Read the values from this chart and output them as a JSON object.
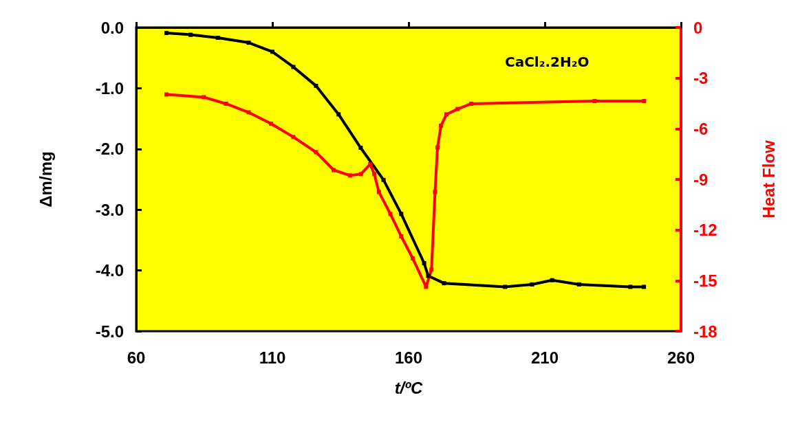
{
  "chart_data": {
    "type": "line",
    "xlabel": "t/ºC",
    "ylabel": "Δm/mg",
    "y2label": "Heat Flow",
    "annotations": [
      "CaCl₂.2H₂O"
    ],
    "xlim": [
      60,
      260
    ],
    "xticks": [
      60,
      110,
      160,
      210,
      260
    ],
    "ylim": [
      -5,
      0
    ],
    "yticks": [
      {
        "value": -5,
        "label": "-5.0"
      },
      {
        "value": -4,
        "label": "-4.0"
      },
      {
        "value": -3,
        "label": "-3.0"
      },
      {
        "value": -2,
        "label": "-2.0"
      },
      {
        "value": -1,
        "label": "-1.0"
      },
      {
        "value": 0,
        "label": "0.0"
      }
    ],
    "y2lim": [
      -18,
      0
    ],
    "y2ticks": [
      -18,
      -15,
      -12,
      -9,
      -6,
      -3,
      0
    ],
    "grid": false,
    "marker": "square",
    "line_style": "solid",
    "series": [
      {
        "color": "#000000",
        "x": [
          71.1,
          80,
          90,
          101.3,
          110,
          117.7,
          126,
          134.3,
          142.4,
          150.8,
          157.3,
          165.7,
          167.2,
          173,
          195.4,
          205.3,
          212.7,
          222.6,
          241.4,
          246.4
        ],
        "values": [
          -0.09,
          -0.12,
          -0.17,
          -0.25,
          -0.4,
          -0.65,
          -0.96,
          -1.43,
          -1.98,
          -2.51,
          -3.07,
          -3.88,
          -4.09,
          -4.21,
          -4.27,
          -4.23,
          -4.16,
          -4.23,
          -4.27,
          -4.27
        ]
      },
      {
        "color": "#ff0000",
        "axis": "y2",
        "x": [
          71.1,
          84.8,
          93,
          101.3,
          109.5,
          117.7,
          126,
          132.5,
          138.5,
          142.5,
          145.9,
          147.4,
          149.1,
          153.3,
          157.3,
          161.5,
          166.4,
          168.4,
          169.7,
          170.6,
          171.9,
          173.9,
          178,
          183,
          228.3,
          246.4
        ],
        "values": [
          -3.97,
          -4.13,
          -4.52,
          -5.03,
          -5.7,
          -6.49,
          -7.39,
          -8.45,
          -8.77,
          -8.69,
          -8.1,
          -8.69,
          -9.75,
          -11.05,
          -12.38,
          -13.68,
          -15.37,
          -14.35,
          -9.75,
          -7.11,
          -5.82,
          -5.15,
          -4.83,
          -4.52,
          -4.36,
          -4.36
        ]
      }
    ]
  }
}
